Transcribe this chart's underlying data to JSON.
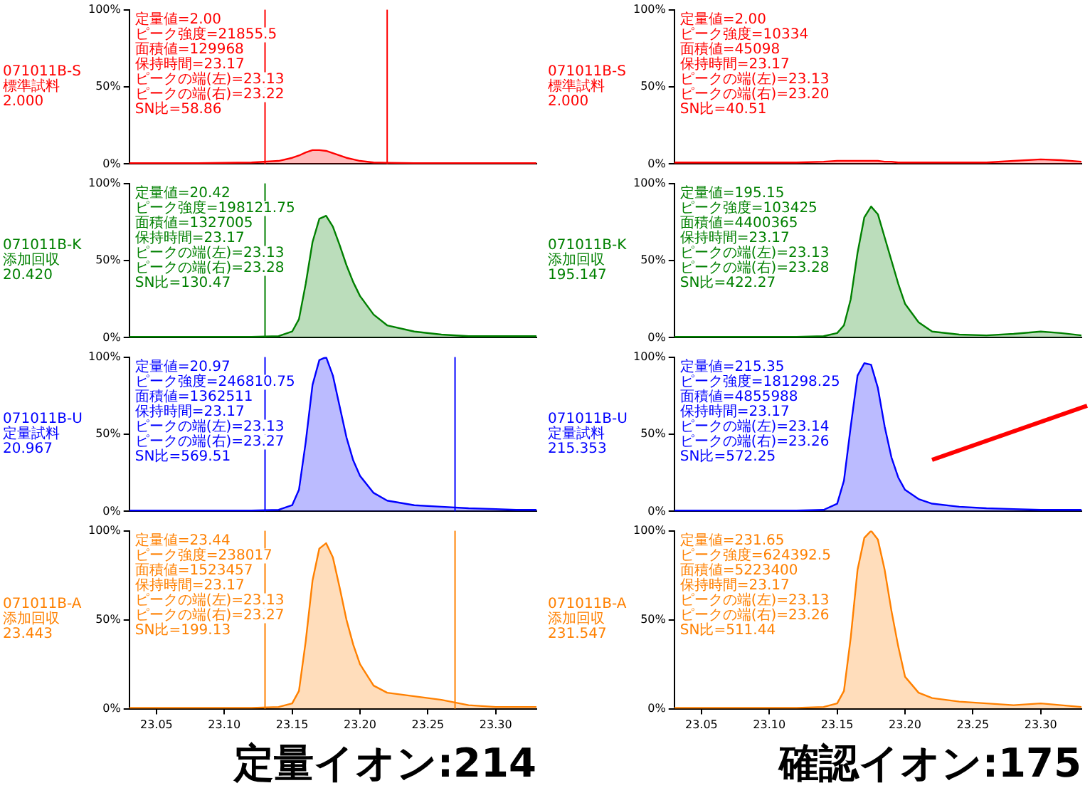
{
  "chart_data": [
    {
      "type": "area",
      "x": [
        23.03,
        23.08,
        23.12,
        23.14,
        23.15,
        23.155,
        23.16,
        23.165,
        23.17,
        23.175,
        23.18,
        23.185,
        23.19,
        23.195,
        23.2,
        23.21,
        23.22,
        23.24,
        23.26,
        23.28,
        23.3,
        23.315,
        23.33
      ],
      "series": [
        {
          "color": "#ff0000",
          "values": [
            0.5,
            0.5,
            1,
            2,
            4,
            5.5,
            7.5,
            9,
            9,
            8.5,
            7,
            5.5,
            4,
            3,
            2,
            1,
            0.8,
            0.5,
            0.5,
            0.5,
            0.5,
            0.5,
            0.5
          ]
        }
      ],
      "xlim": [
        23.03,
        23.33
      ],
      "ylim": [
        0,
        100
      ],
      "yticks": [
        {
          "value": 0,
          "label": "0%"
        },
        {
          "value": 50,
          "label": "50%"
        },
        {
          "value": 100,
          "label": "100%"
        }
      ],
      "tick_labels": "y",
      "legend": false,
      "ref_lines": [
        {
          "axis": "x",
          "value": 23.13,
          "color": "#ff0000"
        },
        {
          "axis": "x",
          "value": 23.22,
          "color": "#ff0000"
        }
      ],
      "annotations": [
        "071011B-S\n標準試料\n2.000",
        "定量値=2.00\nピーク強度=21855.5\n面積値=129968\n保持時間=23.17\nピークの端(左)=23.13\nピークの端(右)=23.22\nSN比=58.86"
      ]
    },
    {
      "type": "area",
      "x": [
        23.03,
        23.08,
        23.12,
        23.14,
        23.15,
        23.155,
        23.16,
        23.165,
        23.17,
        23.175,
        23.18,
        23.185,
        23.19,
        23.195,
        23.2,
        23.21,
        23.22,
        23.24,
        23.26,
        23.28,
        23.3,
        23.315,
        23.33
      ],
      "series": [
        {
          "color": "#008000",
          "values": [
            0.5,
            0.5,
            0.5,
            1,
            4,
            12,
            35,
            62,
            77,
            79,
            72,
            60,
            47,
            36,
            27,
            15,
            8,
            4,
            2,
            1,
            1,
            1,
            1
          ]
        }
      ],
      "xlim": [
        23.03,
        23.33
      ],
      "ylim": [
        0,
        100
      ],
      "yticks": [
        {
          "value": 0,
          "label": "0%"
        },
        {
          "value": 50,
          "label": "50%"
        },
        {
          "value": 100,
          "label": "100%"
        }
      ],
      "tick_labels": "y",
      "legend": false,
      "ref_lines": [
        {
          "axis": "x",
          "value": 23.13,
          "color": "#008000"
        }
      ],
      "annotations": [
        "071011B-K\n添加回収\n20.420",
        "定量値=20.42\nピーク強度=198121.75\n面積値=1327005\n保持時間=23.17\nピークの端(左)=23.13\nピークの端(右)=23.28\nSN比=130.47"
      ]
    },
    {
      "type": "area",
      "x": [
        23.03,
        23.08,
        23.12,
        23.14,
        23.15,
        23.155,
        23.16,
        23.165,
        23.17,
        23.175,
        23.18,
        23.185,
        23.19,
        23.195,
        23.2,
        23.21,
        23.22,
        23.24,
        23.26,
        23.28,
        23.3,
        23.315,
        23.33
      ],
      "series": [
        {
          "color": "#0000ff",
          "values": [
            0.5,
            0.5,
            0.5,
            1,
            4,
            14,
            45,
            82,
            98,
            100,
            88,
            68,
            48,
            33,
            23,
            12,
            7,
            4,
            3,
            2,
            1.5,
            1,
            1
          ]
        }
      ],
      "xlim": [
        23.03,
        23.33
      ],
      "ylim": [
        0,
        100
      ],
      "yticks": [
        {
          "value": 0,
          "label": "0%"
        },
        {
          "value": 50,
          "label": "50%"
        },
        {
          "value": 100,
          "label": "100%"
        }
      ],
      "tick_labels": "y",
      "legend": false,
      "ref_lines": [
        {
          "axis": "x",
          "value": 23.13,
          "color": "#0000ff"
        },
        {
          "axis": "x",
          "value": 23.27,
          "color": "#0000ff"
        }
      ],
      "annotations": [
        "071011B-U\n定量試料\n20.967",
        "定量値=20.97\nピーク強度=246810.75\n面積値=1362511\n保持時間=23.17\nピークの端(左)=23.13\nピークの端(右)=23.27\nSN比=569.51"
      ]
    },
    {
      "type": "area",
      "x": [
        23.03,
        23.08,
        23.12,
        23.14,
        23.15,
        23.155,
        23.16,
        23.165,
        23.17,
        23.175,
        23.18,
        23.185,
        23.19,
        23.195,
        23.2,
        23.21,
        23.22,
        23.24,
        23.26,
        23.28,
        23.3,
        23.315,
        23.33
      ],
      "series": [
        {
          "color": "#ff8000",
          "values": [
            0.5,
            0.5,
            0.5,
            1,
            3,
            10,
            38,
            72,
            90,
            93,
            85,
            68,
            50,
            36,
            25,
            13,
            9,
            7,
            5,
            2,
            1,
            1,
            1
          ]
        }
      ],
      "xlim": [
        23.03,
        23.33
      ],
      "ylim": [
        0,
        100
      ],
      "yticks": [
        {
          "value": 0,
          "label": "0%"
        },
        {
          "value": 50,
          "label": "50%"
        },
        {
          "value": 100,
          "label": "100%"
        }
      ],
      "xticks": [
        23.05,
        {
          "value": 23.1,
          "label": "23.10"
        },
        23.15,
        {
          "value": 23.2,
          "label": "23.20"
        },
        23.25,
        {
          "value": 23.3,
          "label": "23.30"
        }
      ],
      "legend": false,
      "xlabel": "定量イオン:214",
      "ref_lines": [
        {
          "axis": "x",
          "value": 23.13,
          "color": "#ff8000"
        },
        {
          "axis": "x",
          "value": 23.27,
          "color": "#ff8000"
        }
      ],
      "annotations": [
        "071011B-A\n添加回収\n23.443",
        "定量値=23.44\nピーク強度=238017\n面積値=1523457\n保持時間=23.17\nピークの端(左)=23.13\nピークの端(右)=23.27\nSN比=199.13"
      ]
    },
    {
      "type": "area",
      "x": [
        23.03,
        23.08,
        23.12,
        23.14,
        23.15,
        23.155,
        23.16,
        23.165,
        23.17,
        23.175,
        23.18,
        23.185,
        23.19,
        23.195,
        23.2,
        23.21,
        23.22,
        23.24,
        23.26,
        23.28,
        23.3,
        23.315,
        23.33
      ],
      "series": [
        {
          "color": "#ff0000",
          "values": [
            1,
            1,
            1,
            1.5,
            2,
            2,
            2,
            2,
            2,
            2,
            2,
            1.5,
            1.5,
            1,
            1,
            1,
            1,
            1,
            1,
            2,
            3,
            2.5,
            1.5
          ]
        }
      ],
      "xlim": [
        23.03,
        23.33
      ],
      "ylim": [
        0,
        100
      ],
      "yticks": [
        {
          "value": 0,
          "label": "0%"
        },
        {
          "value": 50,
          "label": "50%"
        },
        {
          "value": 100,
          "label": "100%"
        }
      ],
      "tick_labels": "y",
      "legend": false,
      "annotations": [
        "071011B-S\n標準試料\n2.000",
        "定量値=2.00\nピーク強度=10334\n面積値=45098\n保持時間=23.17\nピークの端(左)=23.13\nピークの端(右)=23.20\nSN比=40.51"
      ]
    },
    {
      "type": "area",
      "x": [
        23.03,
        23.08,
        23.12,
        23.14,
        23.15,
        23.155,
        23.16,
        23.165,
        23.17,
        23.175,
        23.18,
        23.185,
        23.19,
        23.195,
        23.2,
        23.21,
        23.22,
        23.24,
        23.26,
        23.28,
        23.3,
        23.315,
        23.33
      ],
      "series": [
        {
          "color": "#008000",
          "values": [
            0.5,
            0.5,
            0.5,
            1,
            3,
            8,
            25,
            55,
            78,
            85,
            80,
            65,
            50,
            35,
            22,
            10,
            4,
            2,
            1.5,
            2.5,
            4,
            3,
            1.5
          ]
        }
      ],
      "xlim": [
        23.03,
        23.33
      ],
      "ylim": [
        0,
        100
      ],
      "yticks": [
        {
          "value": 0,
          "label": "0%"
        },
        {
          "value": 50,
          "label": "50%"
        },
        {
          "value": 100,
          "label": "100%"
        }
      ],
      "tick_labels": "y",
      "legend": false,
      "annotations": [
        "071011B-K\n添加回収\n195.147",
        "定量値=195.15\nピーク強度=103425\n面積値=4400365\n保持時間=23.17\nピークの端(左)=23.13\nピークの端(右)=23.28\nSN比=422.27"
      ]
    },
    {
      "type": "area",
      "x": [
        23.03,
        23.08,
        23.12,
        23.14,
        23.15,
        23.155,
        23.16,
        23.165,
        23.17,
        23.175,
        23.18,
        23.185,
        23.19,
        23.195,
        23.2,
        23.21,
        23.22,
        23.24,
        23.26,
        23.28,
        23.3,
        23.315,
        23.33
      ],
      "series": [
        {
          "color": "#0000ff",
          "values": [
            0.5,
            0.5,
            0.5,
            1,
            5,
            20,
            55,
            88,
            96,
            95,
            80,
            55,
            35,
            22,
            14,
            8,
            5,
            3,
            2,
            1.5,
            1,
            1,
            1
          ]
        }
      ],
      "xlim": [
        23.03,
        23.33
      ],
      "ylim": [
        0,
        100
      ],
      "yticks": [
        {
          "value": 0,
          "label": "0%"
        },
        {
          "value": 50,
          "label": "50%"
        },
        {
          "value": 100,
          "label": "100%"
        }
      ],
      "tick_labels": "y",
      "legend": false,
      "annotations": [
        "071011B-U\n定量試料\n215.353",
        "定量値=215.35\nピーク強度=181298.25\n面積値=4855988\n保持時間=23.17\nピークの端(左)=23.14\nピークの端(右)=23.26\nSN比=572.25"
      ]
    },
    {
      "type": "area",
      "x": [
        23.03,
        23.08,
        23.12,
        23.14,
        23.15,
        23.155,
        23.16,
        23.165,
        23.17,
        23.175,
        23.18,
        23.185,
        23.19,
        23.195,
        23.2,
        23.21,
        23.22,
        23.24,
        23.26,
        23.28,
        23.3,
        23.315,
        23.33
      ],
      "series": [
        {
          "color": "#ff8000",
          "values": [
            0.5,
            0.5,
            0.5,
            1,
            3,
            10,
            40,
            78,
            96,
            100,
            95,
            78,
            55,
            35,
            18,
            9,
            6,
            4,
            3,
            2,
            3,
            2,
            1
          ]
        }
      ],
      "xlim": [
        23.03,
        23.33
      ],
      "ylim": [
        0,
        100
      ],
      "yticks": [
        {
          "value": 0,
          "label": "0%"
        },
        {
          "value": 50,
          "label": "50%"
        },
        {
          "value": 100,
          "label": "100%"
        }
      ],
      "xticks": [
        23.05,
        {
          "value": 23.1,
          "label": "23.10"
        },
        23.15,
        {
          "value": 23.2,
          "label": "23.20"
        },
        23.25,
        {
          "value": 23.3,
          "label": "23.30"
        }
      ],
      "legend": false,
      "xlabel": "確認イオン:175",
      "annotations": [
        "071011B-A\n添加回収\n231.547",
        "定量値=231.65\nピーク強度=624392.5\n面積値=5223400\n保持時間=23.17\nピークの端(左)=23.13\nピークの端(右)=23.26\nSN比=511.44"
      ]
    }
  ]
}
